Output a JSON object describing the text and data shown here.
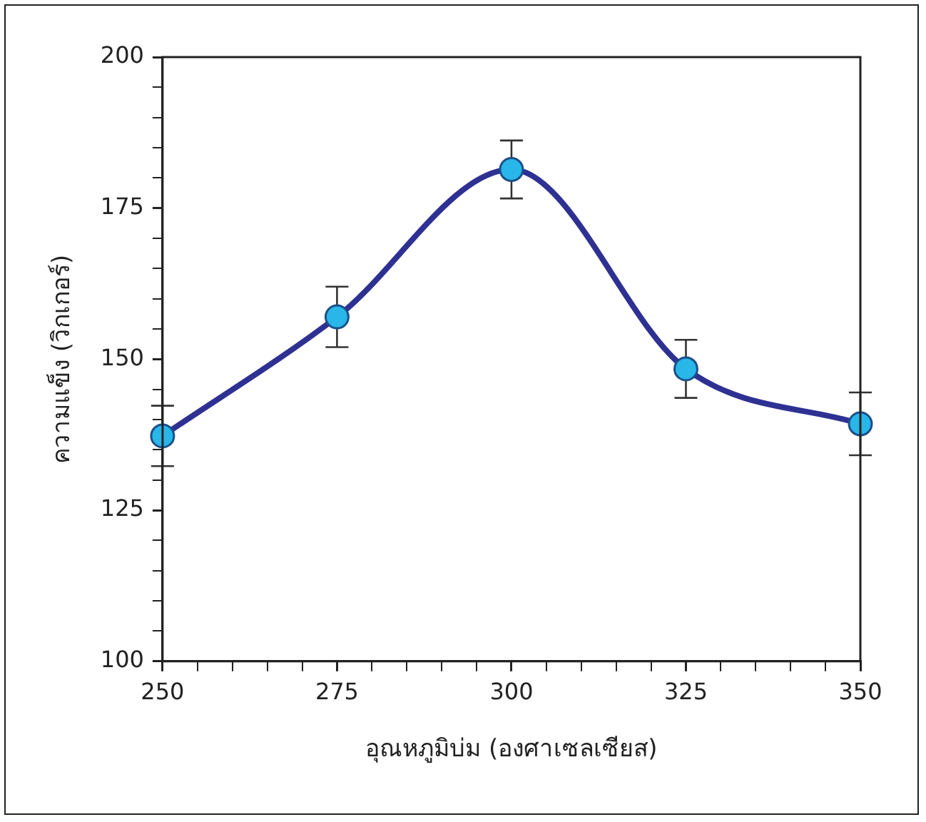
{
  "chart_data": {
    "type": "line",
    "xlabel": "อุณหภูมิบ่ม (องศาเซลเซียส)",
    "ylabel": "ความแข็ง (วิกเกอร์)",
    "x": [
      250,
      275,
      300,
      325,
      350
    ],
    "series": [
      {
        "type": "line",
        "color": "#2e3192",
        "values": [
          137.3,
          157,
          181.4,
          148.4,
          139.3
        ],
        "marker": "none"
      },
      {
        "type": "scatter",
        "color": "#29b6e8",
        "values": [
          137.3,
          157,
          181.4,
          148.4,
          139.3
        ],
        "marker": "circle",
        "errors": [
          5,
          5,
          4.8,
          4.8,
          5.2
        ]
      }
    ],
    "xlim": [
      250,
      350
    ],
    "ylim": [
      100,
      200
    ],
    "xticks": [
      250,
      {
        "value": 255,
        "label": null
      },
      {
        "value": 260,
        "label": null
      },
      {
        "value": 265,
        "label": null
      },
      {
        "value": 270,
        "label": null
      },
      275,
      {
        "value": 280,
        "label": null
      },
      {
        "value": 285,
        "label": null
      },
      {
        "value": 290,
        "label": null
      },
      {
        "value": 295,
        "label": null
      },
      300,
      {
        "value": 305,
        "label": null
      },
      {
        "value": 310,
        "label": null
      },
      {
        "value": 315,
        "label": null
      },
      {
        "value": 320,
        "label": null
      },
      325,
      {
        "value": 330,
        "label": null
      },
      {
        "value": 335,
        "label": null
      },
      {
        "value": 340,
        "label": null
      },
      {
        "value": 345,
        "label": null
      },
      350
    ],
    "yticks": [
      100,
      {
        "value": 105,
        "label": null
      },
      {
        "value": 110,
        "label": null
      },
      {
        "value": 115,
        "label": null
      },
      {
        "value": 120,
        "label": null
      },
      125,
      {
        "value": 130,
        "label": null
      },
      {
        "value": 135,
        "label": null
      },
      {
        "value": 140,
        "label": null
      },
      {
        "value": 145,
        "label": null
      },
      150,
      {
        "value": 155,
        "label": null
      },
      {
        "value": 160,
        "label": null
      },
      {
        "value": 165,
        "label": null
      },
      {
        "value": 170,
        "label": null
      },
      175,
      {
        "value": 180,
        "label": null
      },
      {
        "value": 185,
        "label": null
      },
      {
        "value": 190,
        "label": null
      },
      {
        "value": 195,
        "label": null
      },
      200
    ],
    "grid": false,
    "legend": false
  }
}
